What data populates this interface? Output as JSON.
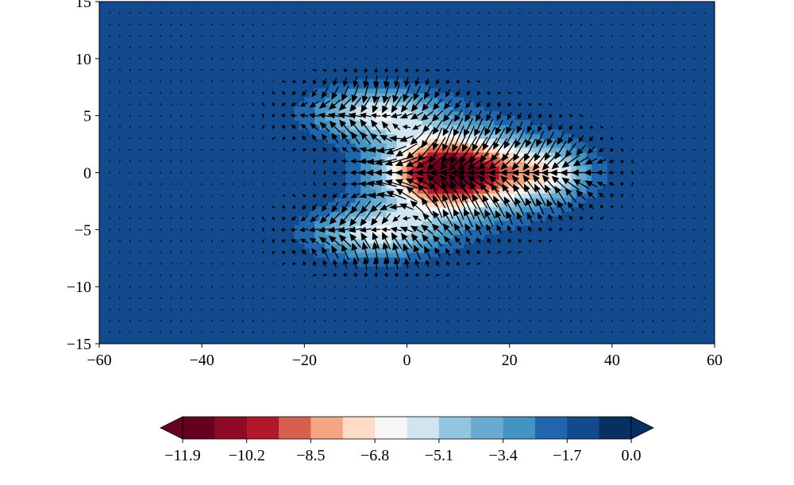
{
  "chart_data": {
    "type": "filled-contour-with-quiver",
    "title": "",
    "xlabel": "",
    "ylabel": "",
    "xlim": [
      -60,
      60
    ],
    "ylim": [
      -15,
      15
    ],
    "x_ticks": [
      -60,
      -40,
      -20,
      0,
      20,
      40,
      60
    ],
    "y_ticks": [
      -15,
      -10,
      -5,
      0,
      5,
      10,
      15
    ],
    "x_tick_labels": [
      "−60",
      "−40",
      "−20",
      "0",
      "20",
      "40",
      "60"
    ],
    "y_tick_labels": [
      "−15",
      "−10",
      "−5",
      "0",
      "5",
      "10",
      "15"
    ],
    "grid": false,
    "field": {
      "description_source": "shaded scalar field, minimum near (5, 0)",
      "min_value": -11.9,
      "max_value": 0.0,
      "min_location": [
        5,
        0
      ],
      "background_value": 0.0,
      "approx_outer_extent_x": [
        -23,
        39
      ],
      "approx_outer_extent_y": [
        -8.5,
        8.5
      ]
    },
    "quiver": {
      "grid_spacing_x": 2,
      "grid_spacing_y": 1,
      "dominant_direction": "westward (toward negative x)",
      "max_region": "near y = 0, x between 0 and 20"
    },
    "colorbar": {
      "orientation": "horizontal",
      "placement": "bottom",
      "extend": "both",
      "colormap": "RdBu",
      "tick_values": [
        -11.9,
        -10.2,
        -8.5,
        -6.8,
        -5.1,
        -3.4,
        -1.7,
        0.0
      ],
      "tick_labels": [
        "−11.9",
        "−10.2",
        "−8.5",
        "−6.8",
        "−5.1",
        "−3.4",
        "−1.7",
        "0.0"
      ],
      "levels_count": 14,
      "colors": [
        "#67001f",
        "#8e0b25",
        "#b2182b",
        "#d6604d",
        "#f4a582",
        "#fddbc7",
        "#f7f7f7",
        "#d1e5f0",
        "#92c5de",
        "#6aa9d0",
        "#4393c3",
        "#2166ac",
        "#124a8d",
        "#053061"
      ]
    }
  }
}
